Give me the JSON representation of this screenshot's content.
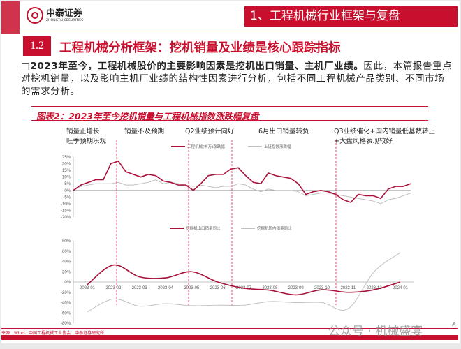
{
  "header": {
    "logo_cn": "中泰证券",
    "logo_en": "ZHONGTAI SECURITIES",
    "section_title": "1、工程机械行业框架与复盘"
  },
  "section": {
    "number": "1.2",
    "heading": "工程机械分析框架：挖机销量及业绩是核心跟踪指标"
  },
  "body": {
    "bold": "□2023年至今，工程机械股价的主要影响因素是挖机出口销量、主机厂业绩。",
    "rest": "因此，本篇报告重点对挖机销量，以及影响主机厂业绩的结构性因素进行分析，包括不同工程机械产品类别、不同市场的需求分析。"
  },
  "figure": {
    "caption": "图表2：2023年至今挖机销量与工程机械指数涨跌幅复盘"
  },
  "annotations": [
    {
      "line1": "销量正增长",
      "line2": "旺季预期乐观"
    },
    {
      "line1": "销量不及预期",
      "line2": ""
    },
    {
      "line1": "Q2业绩预计向好",
      "line2": ""
    },
    {
      "line1": "6月出口销量转负",
      "line2": ""
    },
    {
      "line1": "Q3业绩催化+国内销量低基数转正",
      "line2": "+大盘风格表现较好"
    }
  ],
  "colors": {
    "brand": "#c8102e",
    "series_primary": "#a8123a",
    "series_secondary": "#c0c0c0"
  },
  "chart_data": [
    {
      "type": "line",
      "title": "",
      "ylim": [
        -20,
        25
      ],
      "yticks": [
        "25%",
        "20%",
        "15%",
        "10%",
        "5%",
        "0%",
        "-5%",
        "-10%",
        "-15%",
        "-20%"
      ],
      "legend_position": "top",
      "series": [
        {
          "name": "工程机械(申万)涨跌幅",
          "values": [
            0,
            4,
            6,
            8,
            8,
            20,
            22,
            14,
            12,
            10,
            12,
            11,
            7,
            6,
            4,
            4,
            0,
            5,
            11,
            12,
            12,
            16,
            17,
            11,
            6,
            5,
            13,
            11,
            10,
            9,
            5,
            -3,
            -1,
            0,
            -1,
            -3,
            -7,
            -9,
            -3,
            -4,
            -4,
            -6,
            1,
            3,
            3,
            5
          ]
        },
        {
          "name": "上证指数涨跌幅",
          "values": [
            0,
            3,
            4,
            5,
            5,
            5,
            6,
            4,
            4,
            5,
            6,
            8,
            5,
            6,
            5,
            4,
            3,
            4,
            3,
            2,
            3,
            3,
            5,
            4,
            1,
            -1,
            1,
            0,
            0,
            0,
            -1,
            -4,
            -3,
            -2,
            -2,
            -3,
            -4,
            -5,
            -6,
            -7,
            -8,
            -10,
            -7,
            -6,
            -4,
            -2
          ]
        }
      ]
    },
    {
      "type": "line",
      "title": "",
      "ylim": [
        -80,
        80
      ],
      "yticks": [
        "80%",
        "60%",
        "40%",
        "20%",
        "0%",
        "-20%",
        "-40%",
        "-60%",
        "-80%"
      ],
      "categories": [
        "2023-01",
        "2023-02",
        "2023-03",
        "2023-04",
        "2023-05",
        "2023-06",
        "2023-07",
        "2023-08",
        "2023-09",
        "2023-10",
        "2023-11",
        "2023-12",
        "2024-01"
      ],
      "legend_position": "top",
      "series": [
        {
          "name": "挖掘机出口销量同比",
          "values": [
            -5,
            33,
            10,
            8,
            20,
            0,
            -12,
            -16,
            -25,
            -15,
            -20,
            -15,
            0
          ]
        },
        {
          "name": "挖掘机国内销量同比",
          "values": [
            -58,
            -33,
            -47,
            -42,
            -46,
            -45,
            -45,
            -38,
            -40,
            -40,
            -52,
            20,
            57
          ]
        }
      ]
    }
  ],
  "footer": {
    "source": "来源：Wind、中国工程机械工业协会、中泰证券研究所",
    "watermark": "公众号 · 机械盛宴",
    "page": "6"
  }
}
